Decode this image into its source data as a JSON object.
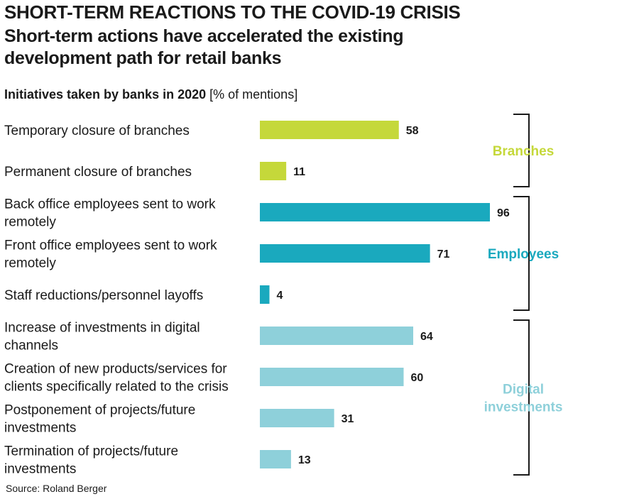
{
  "title": "SHORT-TERM REACTIONS TO THE COVID-19 CRISIS",
  "subtitle": "Short-term actions have accelerated the existing development path for retail banks",
  "chart_label": {
    "bold": "Initiatives taken by banks in 2020",
    "unit": "[% of mentions]"
  },
  "source": "Source: Roland Berger",
  "colors": {
    "branches": "#c5d83a",
    "employees": "#1aa9be",
    "digital": "#8ed0da"
  },
  "chart_data": {
    "type": "bar",
    "orientation": "horizontal",
    "title": "Initiatives taken by banks in 2020",
    "xlabel": "[% of mentions]",
    "xlim": [
      0,
      100
    ],
    "categories": [
      [
        "Temporary closure of branches"
      ],
      [
        "Permanent closure of branches"
      ],
      [
        "Back office employees sent to work",
        "remotely"
      ],
      [
        "Front office employees sent to work",
        "remotely"
      ],
      [
        "Staff reductions/personnel layoffs"
      ],
      [
        "Increase of investments in digital",
        "channels"
      ],
      [
        "Creation of new products/services for",
        "clients specifically related to the crisis"
      ],
      [
        "Postponement of projects/future",
        "investments"
      ],
      [
        "Termination of projects/future",
        "investments"
      ]
    ],
    "values": [
      58,
      11,
      96,
      71,
      4,
      64,
      60,
      31,
      13
    ],
    "groups": [
      {
        "label": [
          "Branches"
        ],
        "color_key": "branches",
        "start": 0,
        "end": 1
      },
      {
        "label": [
          "Employees"
        ],
        "color_key": "employees",
        "start": 2,
        "end": 4
      },
      {
        "label": [
          "Digital",
          "investments"
        ],
        "color_key": "digital",
        "start": 5,
        "end": 8
      }
    ]
  }
}
